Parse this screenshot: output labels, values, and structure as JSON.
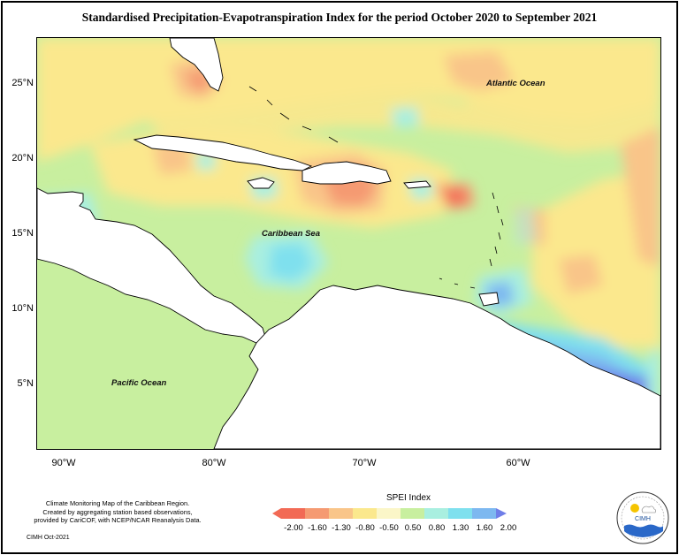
{
  "title": "Standardised Precipitation-Evapotranspiration Index for the period October 2020 to September 2021",
  "map": {
    "lat_ticks": [
      "25°N",
      "20°N",
      "15°N",
      "10°N",
      "5°N"
    ],
    "lon_ticks": [
      "90°W",
      "80°W",
      "70°W",
      "60°W"
    ],
    "labels": {
      "atlantic": "Atlantic Ocean",
      "caribbean": "Caribbean Sea",
      "pacific": "Pacific Ocean"
    }
  },
  "legend": {
    "title": "SPEI Index",
    "ticks": [
      "-2.00",
      "-1.60",
      "-1.30",
      "-0.80",
      "-0.50",
      "0.50",
      "0.80",
      "1.30",
      "1.60",
      "2.00"
    ],
    "colors": [
      "#f26a55",
      "#f59a72",
      "#f9c589",
      "#fbe88d",
      "#fbf6c8",
      "#c8ef9f",
      "#a9efe0",
      "#7fe0ee",
      "#7db8f0",
      "#6f7ee8"
    ]
  },
  "credits": {
    "line1": "Climate Monitoring Map of the Caribbean Region.",
    "line2": "Created by aggregating station based observations,",
    "line3": "provided by CariCOF, with NCEP/NCAR Reanalysis Data.",
    "note": "CIMH Oct-2021"
  },
  "logo": {
    "text": "CIMH"
  }
}
